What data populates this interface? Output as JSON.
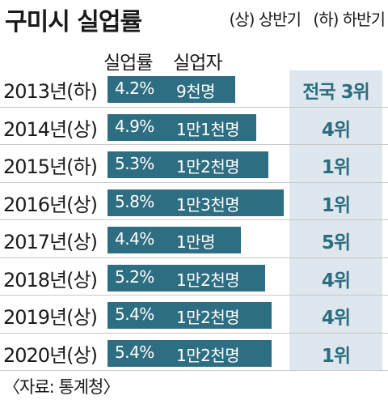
{
  "title": "구미시 실업률",
  "legend": {
    "first_half": "(상) 상반기",
    "second_half": "(하) 하반기"
  },
  "headers": {
    "rate": "실업률",
    "count": "실업자"
  },
  "source": "〈자료: 통계청〉",
  "colors": {
    "bar": "#2e6e82",
    "rank_panel": "#dfe7ee",
    "rank_text": "#2d6d80"
  },
  "chart_data": {
    "type": "bar",
    "orientation": "horizontal",
    "title": "구미시 실업률",
    "categories": [
      "2013년(하)",
      "2014년(상)",
      "2015년(하)",
      "2016년(상)",
      "2017년(상)",
      "2018년(상)",
      "2019년(상)",
      "2020년(상)"
    ],
    "series": [
      {
        "name": "실업률",
        "values": [
          4.2,
          4.9,
          5.3,
          5.8,
          4.4,
          5.2,
          5.4,
          5.4
        ]
      }
    ],
    "rate_labels": [
      "4.2%",
      "4.9%",
      "5.3%",
      "5.8%",
      "4.4%",
      "5.2%",
      "5.4%",
      "5.4%"
    ],
    "count_labels": [
      "9천명",
      "1만1천명",
      "1만2천명",
      "1만3천명",
      "1만명",
      "1만2천명",
      "1만2천명",
      "1만2천명"
    ],
    "rank_labels": [
      "전국 3위",
      "4위",
      "1위",
      "1위",
      "5위",
      "4위",
      "4위",
      "1위"
    ],
    "source": "〈자료: 통계청〉"
  }
}
